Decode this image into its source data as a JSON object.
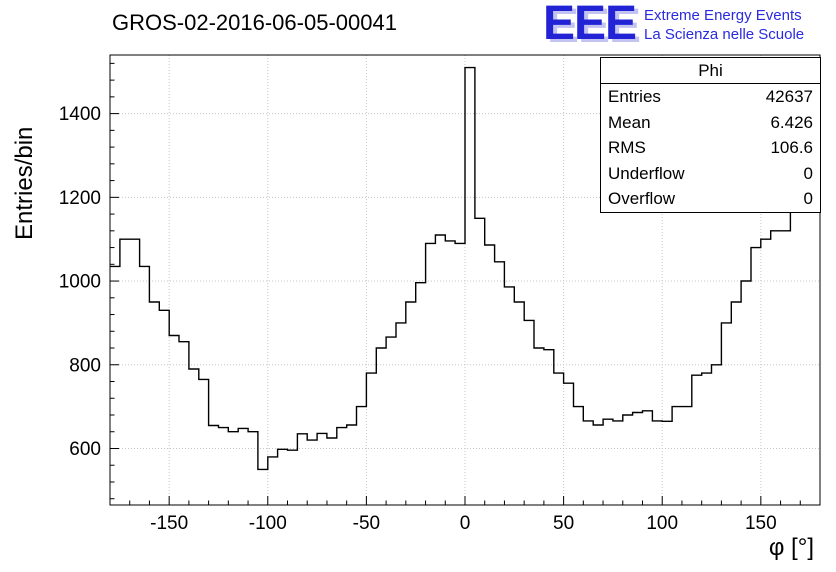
{
  "title": "GROS-02-2016-06-05-00041",
  "logo": {
    "eee": "EEE",
    "line1": "Extreme Energy Events",
    "line2": "La Scienza nelle Scuole",
    "color": "#2323d6",
    "shadow_color": "#c3c3f2"
  },
  "stats": {
    "header": "Phi",
    "rows": [
      {
        "label": "Entries",
        "value": "42637"
      },
      {
        "label": "Mean",
        "value": "6.426"
      },
      {
        "label": "RMS",
        "value": "106.6"
      },
      {
        "label": "Underflow",
        "value": "0"
      },
      {
        "label": "Overflow",
        "value": "0"
      }
    ]
  },
  "axes": {
    "y_label": "Entries/bin",
    "x_label": "φ [°]",
    "x_ticks": [
      -150,
      -100,
      -50,
      0,
      50,
      100,
      150
    ],
    "y_ticks": [
      600,
      800,
      1000,
      1200,
      1400
    ]
  },
  "chart_data": {
    "type": "bar",
    "subtype": "histogram-step-outline",
    "title": "GROS-02-2016-06-05-00041",
    "xlabel": "phi [deg]",
    "ylabel": "Entries/bin",
    "xlim": [
      -180,
      180
    ],
    "ylim": [
      465,
      1540
    ],
    "grid": true,
    "legend": false,
    "line_color": "#000000",
    "bin_width": 5,
    "x_bin_start": -180,
    "values": [
      1035,
      1100,
      1100,
      1035,
      950,
      930,
      870,
      855,
      790,
      765,
      655,
      650,
      640,
      648,
      640,
      550,
      580,
      598,
      596,
      635,
      620,
      636,
      625,
      650,
      656,
      700,
      780,
      840,
      866,
      900,
      950,
      996,
      1090,
      1110,
      1096,
      1090,
      1510,
      1150,
      1086,
      1046,
      986,
      950,
      906,
      840,
      836,
      780,
      756,
      700,
      666,
      656,
      670,
      666,
      680,
      686,
      690,
      666,
      665,
      700,
      700,
      775,
      780,
      800,
      900,
      950,
      1000,
      1080,
      1100,
      1120,
      1120,
      1175,
      1175,
      1460
    ],
    "stat_summary": {
      "entries": 42637,
      "mean": 6.426,
      "rms": 106.6,
      "underflow": 0,
      "overflow": 0
    }
  }
}
